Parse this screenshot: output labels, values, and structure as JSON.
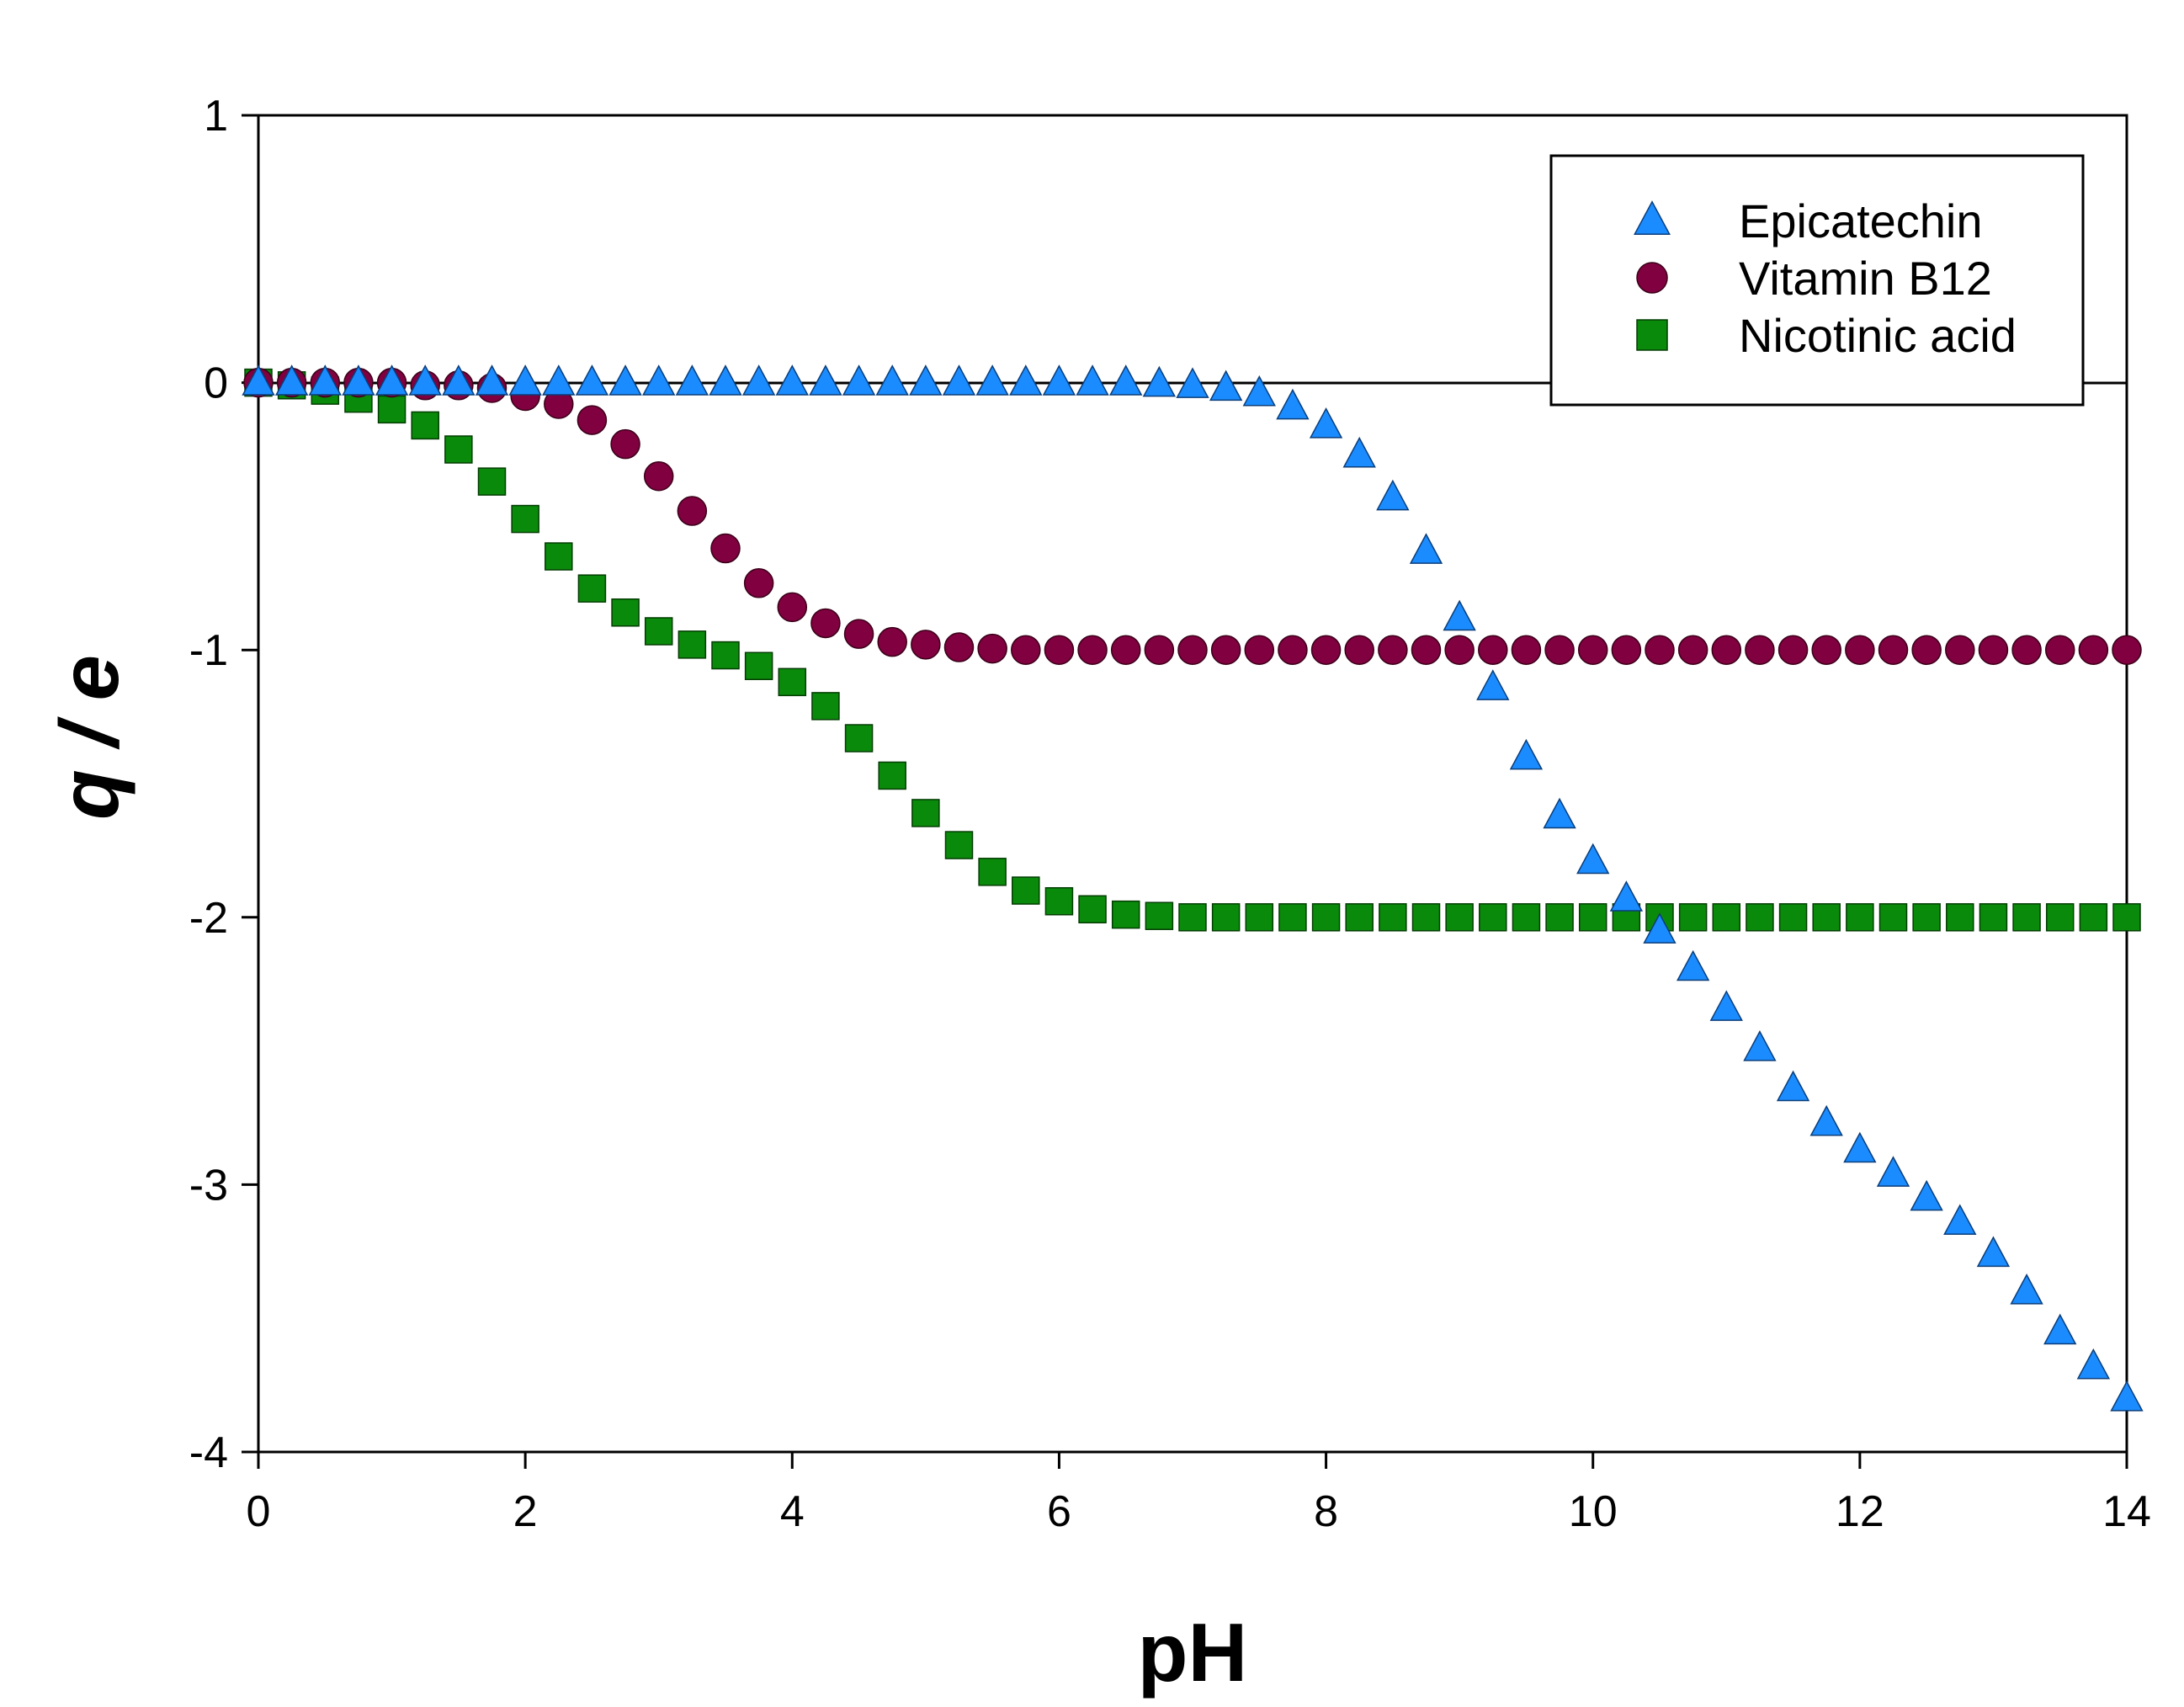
{
  "chart_data": {
    "type": "scatter",
    "title": "",
    "xlabel": "pH",
    "ylabel": "q / e",
    "xlim": [
      0,
      14
    ],
    "ylim": [
      -4,
      1
    ],
    "xticks": [
      0,
      2,
      4,
      6,
      8,
      10,
      12,
      14
    ],
    "yticks": [
      1,
      0,
      -1,
      -2,
      -3,
      -4
    ],
    "grid": false,
    "legend_position": "top-right",
    "x": [
      0,
      0.25,
      0.5,
      0.75,
      1,
      1.25,
      1.5,
      1.75,
      2,
      2.25,
      2.5,
      2.75,
      3,
      3.25,
      3.5,
      3.75,
      4,
      4.25,
      4.5,
      4.75,
      5,
      5.25,
      5.5,
      5.75,
      6,
      6.25,
      6.5,
      6.75,
      7,
      7.25,
      7.5,
      7.75,
      8,
      8.25,
      8.5,
      8.75,
      9,
      9.25,
      9.5,
      9.75,
      10,
      10.25,
      10.5,
      10.75,
      11,
      11.25,
      11.5,
      11.75,
      12,
      12.25,
      12.5,
      12.75,
      13,
      13.25,
      13.5,
      13.75,
      14
    ],
    "series": [
      {
        "name": "Epicatechin",
        "marker": "triangle",
        "color": "#1a8cff",
        "values": [
          0,
          0,
          0,
          0,
          0,
          0,
          0,
          0,
          0,
          0,
          0,
          0,
          0,
          0,
          0,
          0,
          0,
          0,
          0,
          0,
          0,
          0,
          0,
          0,
          0,
          0,
          0,
          -0.005,
          -0.01,
          -0.02,
          -0.04,
          -0.09,
          -0.16,
          -0.27,
          -0.43,
          -0.63,
          -0.88,
          -1.14,
          -1.4,
          -1.62,
          -1.79,
          -1.93,
          -2.05,
          -2.19,
          -2.34,
          -2.49,
          -2.64,
          -2.77,
          -2.87,
          -2.96,
          -3.05,
          -3.14,
          -3.26,
          -3.4,
          -3.55,
          -3.68,
          -3.8
        ]
      },
      {
        "name": "Vitamin B12",
        "marker": "circle",
        "color": "#800040",
        "values": [
          0,
          0,
          0,
          0,
          0,
          -0.01,
          -0.01,
          -0.02,
          -0.05,
          -0.08,
          -0.14,
          -0.23,
          -0.35,
          -0.48,
          -0.62,
          -0.75,
          -0.84,
          -0.9,
          -0.94,
          -0.97,
          -0.98,
          -0.99,
          -0.995,
          -1,
          -1,
          -1,
          -1,
          -1,
          -1,
          -1,
          -1,
          -1,
          -1,
          -1,
          -1,
          -1,
          -1,
          -1,
          -1,
          -1,
          -1,
          -1,
          -1,
          -1,
          -1,
          -1,
          -1,
          -1,
          -1,
          -1,
          -1,
          -1,
          -1,
          -1,
          -1,
          -1,
          -1
        ]
      },
      {
        "name": "Nicotinic acid",
        "marker": "square",
        "color": "#0a8a0a",
        "values": [
          0,
          -0.01,
          -0.03,
          -0.06,
          -0.1,
          -0.16,
          -0.25,
          -0.37,
          -0.51,
          -0.65,
          -0.77,
          -0.86,
          -0.93,
          -0.98,
          -1.02,
          -1.06,
          -1.12,
          -1.21,
          -1.33,
          -1.47,
          -1.61,
          -1.73,
          -1.83,
          -1.9,
          -1.94,
          -1.97,
          -1.99,
          -1.995,
          -2,
          -2,
          -2,
          -2,
          -2,
          -2,
          -2,
          -2,
          -2,
          -2,
          -2,
          -2,
          -2,
          -2,
          -2,
          -2,
          -2,
          -2,
          -2,
          -2,
          -2,
          -2,
          -2,
          -2,
          -2,
          -2,
          -2,
          -2,
          -2
        ]
      }
    ]
  }
}
